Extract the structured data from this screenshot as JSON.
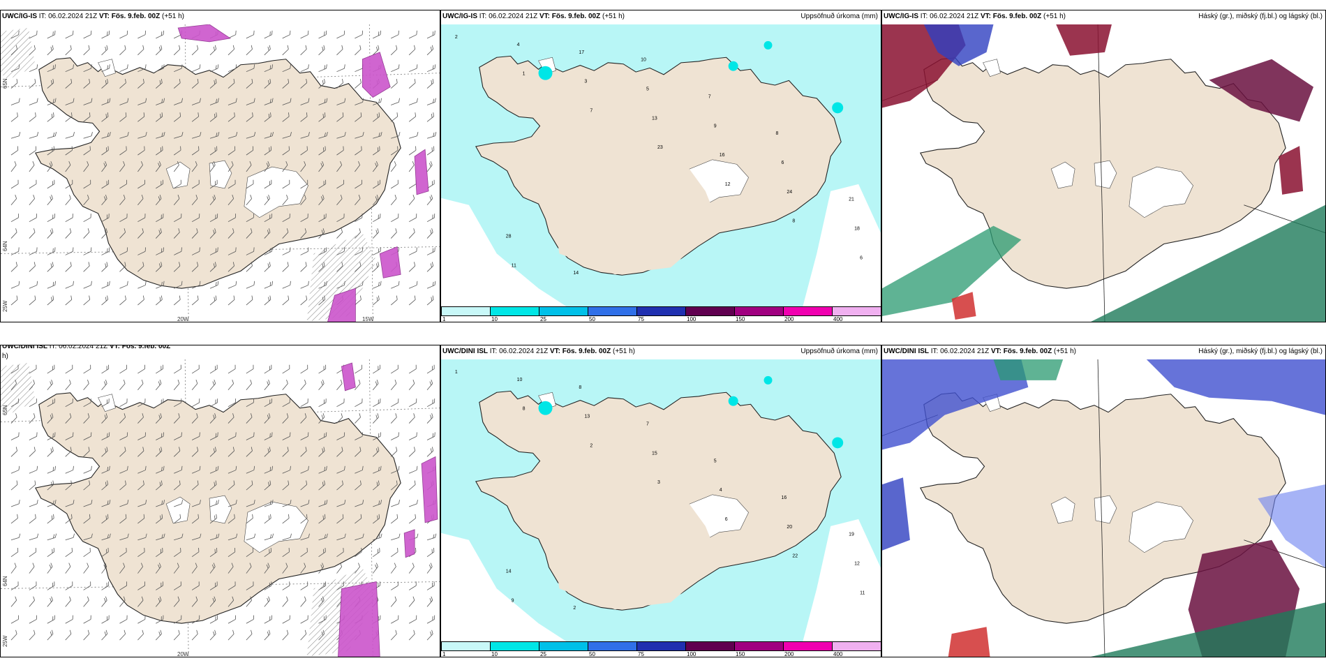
{
  "colors": {
    "land": "#efe3d3",
    "coast": "#222222",
    "precip_light": "#b8f6f6",
    "precip_mid": "#00e6e6",
    "snow_magenta": "#cc55cc"
  },
  "panels": [
    {
      "id": "ig-wind",
      "model": "UWC/IG-IS",
      "it": "IT: 06.02.2024 21Z",
      "vt_label": "VT:",
      "vt": "Fös. 9.feb. 00Z",
      "lead": "(+51 h)",
      "right": "",
      "lat_labels": [
        "65N",
        "64N",
        "25W"
      ],
      "lon_labels": [
        "20W",
        "15W"
      ]
    },
    {
      "id": "ig-precip",
      "model": "UWC/IG-IS",
      "it": "IT: 06.02.2024 21Z",
      "vt_label": "VT:",
      "vt": "Fös. 9.feb. 00Z",
      "lead": "(+51 h)",
      "right": "Uppsöfnuð úrkoma (mm)"
    },
    {
      "id": "ig-cloud",
      "model": "UWC/IG-IS",
      "it": "IT: 06.02.2024 21Z",
      "vt_label": "VT:",
      "vt": "Fös. 9.feb. 00Z",
      "lead": "(+51 h)",
      "right": "Háský (gr.), miðský (fj.bl.) og lágský (bl.)"
    },
    {
      "id": "dini-wind",
      "model": "UWC/DINI ISL",
      "it": "IT: 06.02.2024 21Z",
      "vt_label": "VT:",
      "vt": "Fös. 9.feb. 00Z",
      "lead": "h)",
      "right": "",
      "lat_labels": [
        "65N",
        "64N",
        "25W"
      ],
      "lon_labels": [
        "20W"
      ]
    },
    {
      "id": "dini-precip",
      "model": "UWC/DINI ISL",
      "it": "IT: 06.02.2024 21Z",
      "vt_label": "VT:",
      "vt": "Fös. 9.feb. 00Z",
      "lead": "(+51 h)",
      "right": "Uppsöfnuð úrkoma (mm)"
    },
    {
      "id": "dini-cloud",
      "model": "UWC/DINI ISL",
      "it": "IT: 06.02.2024 21Z",
      "vt_label": "VT:",
      "vt": "Fös. 9.feb. 00Z",
      "lead": "(+51 h)",
      "right": "Háský (gr.), miðský (fj.bl.) og lágský (bl.)"
    }
  ],
  "colorbar": {
    "ticks": [
      "1",
      "10",
      "25",
      "50",
      "75",
      "100",
      "150",
      "200",
      "400"
    ],
    "colors": [
      "#c8f8f8",
      "#00e6e6",
      "#00c0e8",
      "#3070e8",
      "#2030b0",
      "#600050",
      "#a00080",
      "#f000b0",
      "#f0b0f0"
    ]
  },
  "precip_labels_ig": [
    "2",
    "1",
    "7",
    "23",
    "12",
    "8",
    "6",
    "4",
    "3",
    "13",
    "16",
    "24",
    "18",
    "11",
    "17",
    "5",
    "9",
    "6",
    "21",
    "28",
    "14",
    "10",
    "7",
    "8"
  ],
  "precip_labels_dini": [
    "1",
    "8",
    "2",
    "3",
    "6",
    "22",
    "11",
    "10",
    "13",
    "15",
    "4",
    "20",
    "12",
    "9",
    "8",
    "7",
    "5",
    "16",
    "19",
    "14",
    "2"
  ]
}
